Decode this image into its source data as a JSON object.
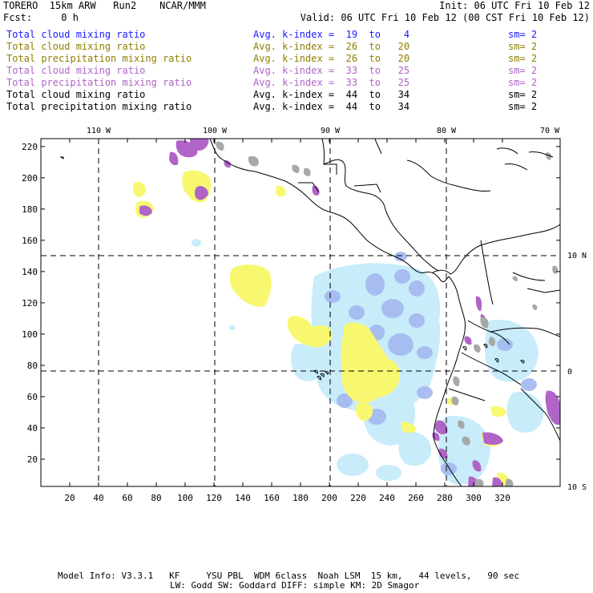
{
  "header": {
    "line1_left": "TORERO  15km ARW   Run2    NCAR/MMM",
    "line1_right": "Init: 06 UTC Fri 10 Feb 12",
    "line2_left": "Fcst:     0 h",
    "line2_right": "Valid: 06 UTC Fri 10 Feb 12 (00 CST Fri 10 Feb 12)"
  },
  "legend": [
    {
      "field": "Total cloud mixing ratio",
      "kindex": "Avg. k-index =  19  to    4",
      "sm": "sm= 2",
      "color": "#1a1aff"
    },
    {
      "field": "Total cloud mixing ratio",
      "kindex": "Avg. k-index =  26  to   20",
      "sm": "sm= 2",
      "color": "#8f7f00"
    },
    {
      "field": "Total precipitation mixing ratio",
      "kindex": "Avg. k-index =  26  to   20",
      "sm": "sm= 2",
      "color": "#8f7f00"
    },
    {
      "field": "Total cloud mixing ratio",
      "kindex": "Avg. k-index =  33  to   25",
      "sm": "sm= 2",
      "color": "#b064c8"
    },
    {
      "field": "Total precipitation mixing ratio",
      "kindex": "Avg. k-index =  33  to   25",
      "sm": "sm= 2",
      "color": "#b064c8"
    },
    {
      "field": "Total cloud mixing ratio",
      "kindex": "Avg. k-index =  44  to   34",
      "sm": "sm= 2",
      "color": "#000000"
    },
    {
      "field": "Total precipitation mixing ratio",
      "kindex": "Avg. k-index =  44  to   34",
      "sm": "sm= 2",
      "color": "#000000"
    }
  ],
  "map": {
    "top_lon_labels": [
      "110 W",
      "100 W",
      "90 W",
      "80 W",
      "70 W"
    ],
    "right_lat_labels": [
      "10 N",
      "0",
      "10 S"
    ],
    "x_ticks": [
      "20",
      "40",
      "60",
      "80",
      "100",
      "120",
      "140",
      "160",
      "180",
      "200",
      "220",
      "240",
      "260",
      "280",
      "300",
      "320"
    ],
    "y_ticks": [
      "220",
      "200",
      "180",
      "160",
      "140",
      "120",
      "100",
      "80",
      "60",
      "40",
      "20"
    ],
    "colors": {
      "light_blue": "#c8ecfa",
      "blue": "#a4b8f0",
      "yellow": "#f8f870",
      "purple": "#b064c8",
      "gray": "#a8a8a8"
    }
  },
  "footer": {
    "line1": "Model Info: V3.3.1   KF     YSU PBL  WDM 6class  Noah LSM  15 km,   44 levels,   90 sec",
    "line2": "LW: Godd SW: Goddard DIFF: simple KM: 2D Smagor"
  }
}
